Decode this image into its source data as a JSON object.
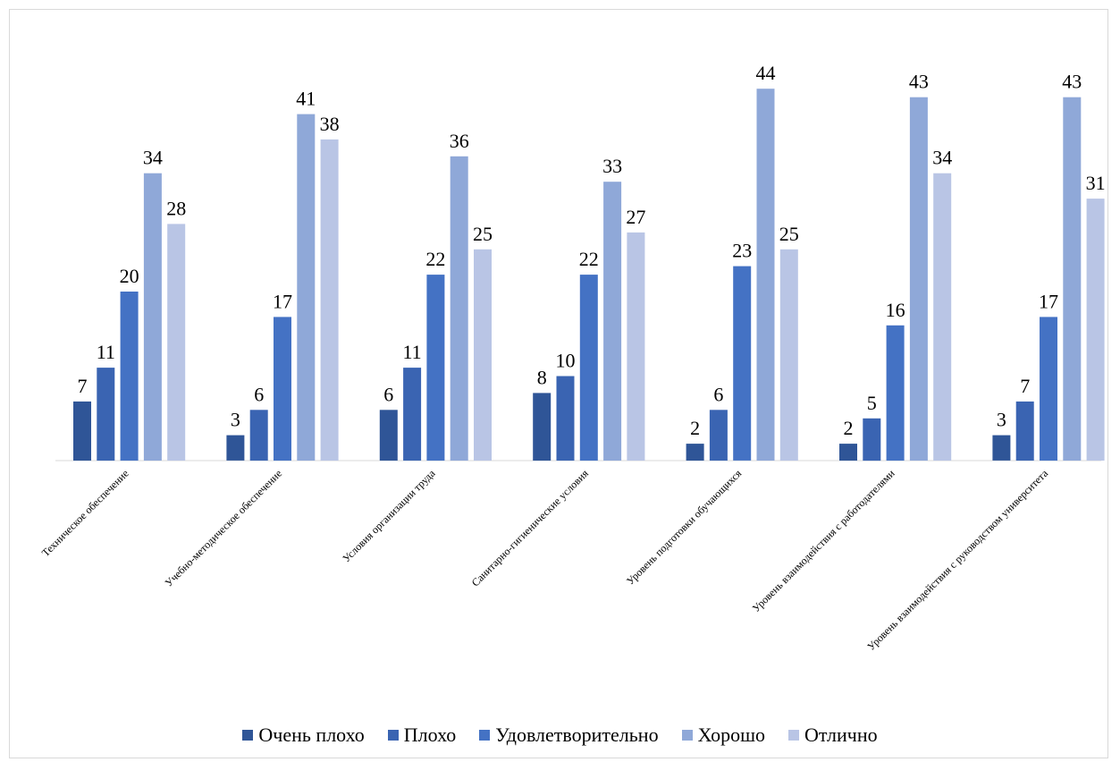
{
  "chart_data": {
    "type": "bar",
    "title": "",
    "xlabel": "",
    "ylabel": "",
    "ylim": [
      0,
      44
    ],
    "grid": false,
    "legend_position": "bottom",
    "categories": [
      "Техническое обеспечение",
      "Учебно-методическое обеспечение",
      "Условия организации труда",
      "Санитарно-гигиенические условия",
      "Уровень подготовки обучающихся",
      "Уровень взаимодействия с работодателями",
      "Уровень взаимодействия с руководством университета"
    ],
    "series": [
      {
        "name": "Очень плохо",
        "color": "#2f5597",
        "values": [
          7,
          3,
          6,
          8,
          2,
          2,
          3
        ]
      },
      {
        "name": "Плохо",
        "color": "#3a64b2",
        "values": [
          11,
          6,
          11,
          10,
          6,
          5,
          7
        ]
      },
      {
        "name": "Удовлетворительно",
        "color": "#4472c4",
        "values": [
          20,
          17,
          22,
          22,
          23,
          16,
          17
        ]
      },
      {
        "name": "Хорошо",
        "color": "#8fa8d8",
        "values": [
          34,
          41,
          36,
          33,
          44,
          43,
          43
        ]
      },
      {
        "name": "Отлично",
        "color": "#b9c5e5",
        "values": [
          28,
          38,
          25,
          27,
          25,
          34,
          31
        ]
      }
    ]
  }
}
